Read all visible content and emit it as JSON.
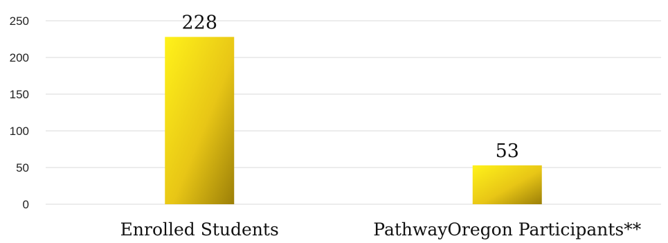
{
  "chart_data": {
    "type": "bar",
    "categories": [
      "Enrolled Students",
      "PathwayOregon Participants**"
    ],
    "values": [
      228,
      53
    ],
    "data_labels": [
      "228",
      "53"
    ],
    "title": "",
    "xlabel": "",
    "ylabel": "",
    "ylim": [
      0,
      250
    ],
    "yticks": [
      "0",
      "50",
      "100",
      "150",
      "200",
      "250"
    ],
    "grid": true,
    "legend": "none",
    "colors": {
      "bar_light": "#fff21a",
      "bar_mid": "#e8c616",
      "bar_dark": "#9c7f08",
      "gridline": "#d9d9d9"
    }
  }
}
